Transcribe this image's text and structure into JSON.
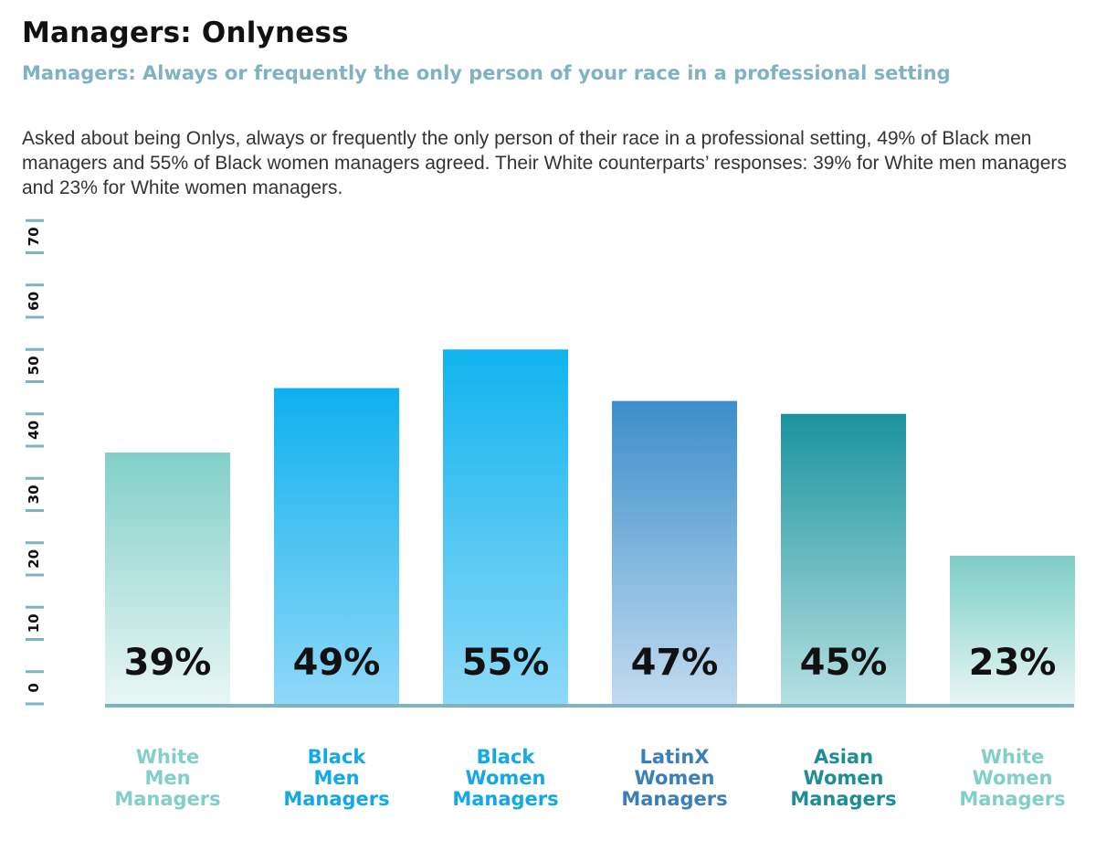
{
  "title": "Managers: Onlyness",
  "subtitle": "Managers: Always or frequently the only person of your race in a professional setting",
  "description": "Asked about being Onlys, always or frequently the only person of their race in a professional setting, 49% of Black men managers and 55% of Black women managers agreed. Their White counterparts’ responses: 39% for White men managers and 23% for White women managers.",
  "colors": {
    "axis": "#7fb3c2",
    "tick_text": "#111111",
    "value_text": "#111111"
  },
  "chart_data": {
    "type": "bar",
    "title": "",
    "xlabel": "",
    "ylabel": "",
    "ylim": [
      0,
      80
    ],
    "yticks": [
      "0",
      "10",
      "20",
      "30",
      "40",
      "50",
      "60",
      "70",
      "80"
    ],
    "grid": false,
    "categories": [
      [
        "White",
        "Men",
        "Managers"
      ],
      [
        "Black",
        "Men",
        "Managers"
      ],
      [
        "Black",
        "Women",
        "Managers"
      ],
      [
        "LatinX",
        "Women",
        "Managers"
      ],
      [
        "Asian",
        "Women",
        "Managers"
      ],
      [
        "White",
        "Women",
        "Managers"
      ]
    ],
    "values": [
      39,
      49,
      55,
      47,
      45,
      23
    ],
    "value_labels": [
      "39%",
      "49%",
      "55%",
      "47%",
      "45%",
      "23%"
    ],
    "bar_colors": [
      {
        "top": "#82cfc8",
        "bottom": "#e8f6f4",
        "label": "#82cfc8"
      },
      {
        "top": "#0fb0ee",
        "bottom": "#8fd8f8",
        "label": "#13a8e6"
      },
      {
        "top": "#11b3ee",
        "bottom": "#8dd9f8",
        "label": "#13a8e6"
      },
      {
        "top": "#3c8ecb",
        "bottom": "#c2dbef",
        "label": "#3a7fba"
      },
      {
        "top": "#1b939e",
        "bottom": "#b6e0e2",
        "label": "#1e8e96"
      },
      {
        "top": "#7dcec6",
        "bottom": "#e8f6f4",
        "label": "#82cfc8"
      }
    ]
  }
}
